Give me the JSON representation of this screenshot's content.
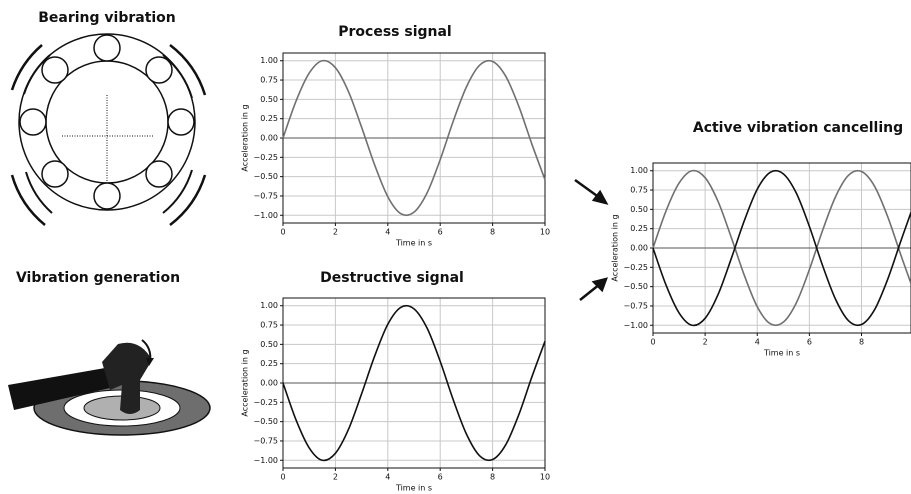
{
  "diagram": {
    "labels": [
      "Bearing vibration",
      "Vibration generation"
    ]
  },
  "chart_data": [
    {
      "type": "line",
      "title": "Process signal",
      "x_label": "Time in s",
      "y_label": "Acceleration in g",
      "x": [
        0,
        0.5,
        1,
        1.5,
        2,
        2.5,
        3,
        3.5,
        4,
        4.5,
        5,
        5.5,
        6,
        6.5,
        7,
        7.5,
        8,
        8.5,
        9,
        9.5,
        10
      ],
      "series": [
        {
          "color": "#707070",
          "values": [
            0,
            0.48,
            0.84,
            1.0,
            0.91,
            0.6,
            0.14,
            -0.35,
            -0.76,
            -0.98,
            -0.96,
            -0.71,
            -0.28,
            0.22,
            0.66,
            0.94,
            0.99,
            0.8,
            0.41,
            -0.08,
            -0.54
          ]
        }
      ],
      "xlim": [
        0,
        10
      ],
      "ylim": [
        -1.1,
        1.1
      ],
      "xticks": [
        0,
        2,
        4,
        6,
        8,
        10
      ],
      "yticks": [
        {
          "value": 1,
          "label": "1.00"
        },
        {
          "value": 0.75,
          "label": "0.75"
        },
        {
          "value": 0.5,
          "label": "0.50"
        },
        {
          "value": 0.25,
          "label": "0.25"
        },
        {
          "value": 0,
          "label": "0.00"
        },
        {
          "value": -0.25,
          "label": "−0.25"
        },
        {
          "value": -0.5,
          "label": "−0.50"
        },
        {
          "value": -0.75,
          "label": "−0.75"
        },
        {
          "value": -1,
          "label": "−1.00"
        }
      ],
      "grid": true
    },
    {
      "type": "line",
      "title": "Destructive signal",
      "x_label": "Time in s",
      "y_label": "Acceleration in g",
      "x": [
        0,
        0.5,
        1,
        1.5,
        2,
        2.5,
        3,
        3.5,
        4,
        4.5,
        5,
        5.5,
        6,
        6.5,
        7,
        7.5,
        8,
        8.5,
        9,
        9.5,
        10
      ],
      "series": [
        {
          "color": "#111111",
          "values": [
            0,
            -0.48,
            -0.84,
            -1.0,
            -0.91,
            -0.6,
            -0.14,
            0.35,
            0.76,
            0.98,
            0.96,
            0.71,
            0.28,
            -0.22,
            -0.66,
            -0.94,
            -0.99,
            -0.8,
            -0.41,
            0.08,
            0.54
          ]
        }
      ],
      "xlim": [
        0,
        10
      ],
      "ylim": [
        -1.1,
        1.1
      ],
      "xticks": [
        0,
        2,
        4,
        6,
        8,
        10
      ],
      "yticks": [
        {
          "value": 1,
          "label": "1.00"
        },
        {
          "value": 0.75,
          "label": "0.75"
        },
        {
          "value": 0.5,
          "label": "0.50"
        },
        {
          "value": 0.25,
          "label": "0.25"
        },
        {
          "value": 0,
          "label": "0.00"
        },
        {
          "value": -0.25,
          "label": "−0.25"
        },
        {
          "value": -0.5,
          "label": "−0.50"
        },
        {
          "value": -0.75,
          "label": "−0.75"
        },
        {
          "value": -1,
          "label": "−1.00"
        }
      ],
      "grid": true
    },
    {
      "type": "line",
      "title": "Active vibration cancelling",
      "x_label": "Time in s",
      "y_label": "Acceleration in g",
      "x": [
        0,
        0.5,
        1,
        1.5,
        2,
        2.5,
        3,
        3.5,
        4,
        4.5,
        5,
        5.5,
        6,
        6.5,
        7,
        7.5,
        8,
        8.5,
        9,
        9.5,
        9.9
      ],
      "series": [
        {
          "color": "#707070",
          "values": [
            0,
            0.48,
            0.84,
            1.0,
            0.91,
            0.6,
            0.14,
            -0.35,
            -0.76,
            -0.98,
            -0.96,
            -0.71,
            -0.28,
            0.22,
            0.66,
            0.94,
            0.99,
            0.8,
            0.41,
            -0.08,
            -0.46
          ]
        },
        {
          "color": "#111111",
          "values": [
            0,
            -0.48,
            -0.84,
            -1.0,
            -0.91,
            -0.6,
            -0.14,
            0.35,
            0.76,
            0.98,
            0.96,
            0.71,
            0.28,
            -0.22,
            -0.66,
            -0.94,
            -0.99,
            -0.8,
            -0.41,
            0.08,
            0.46
          ]
        }
      ],
      "xlim": [
        0,
        9.9
      ],
      "ylim": [
        -1.1,
        1.1
      ],
      "xticks": [
        0,
        2,
        4,
        6,
        8
      ],
      "yticks": [
        {
          "value": 1,
          "label": "1.00"
        },
        {
          "value": 0.75,
          "label": "0.75"
        },
        {
          "value": 0.5,
          "label": "0.50"
        },
        {
          "value": 0.25,
          "label": "0.25"
        },
        {
          "value": 0,
          "label": "0.00"
        },
        {
          "value": -0.25,
          "label": "−0.25"
        },
        {
          "value": -0.5,
          "label": "−0.50"
        },
        {
          "value": -0.75,
          "label": "−0.75"
        },
        {
          "value": -1,
          "label": "−1.00"
        }
      ],
      "grid": true
    }
  ]
}
